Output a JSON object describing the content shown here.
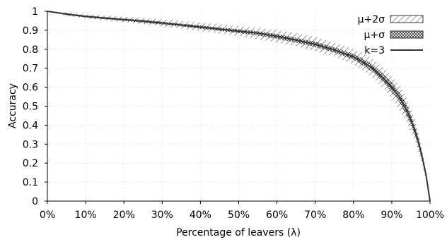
{
  "chart_data": {
    "type": "line",
    "xlabel": "Percentage of leavers (λ)",
    "ylabel": "Accuracy",
    "xlim": [
      0,
      100
    ],
    "ylim": [
      0,
      1
    ],
    "x_ticks": [
      "0%",
      "10%",
      "20%",
      "30%",
      "40%",
      "50%",
      "60%",
      "70%",
      "80%",
      "90%",
      "100%"
    ],
    "y_ticks": [
      "0",
      "0.1",
      "0.2",
      "0.3",
      "0.4",
      "0.5",
      "0.6",
      "0.7",
      "0.8",
      "0.9",
      "1"
    ],
    "grid": true,
    "legend_position": "top-right",
    "x": [
      0,
      5,
      10,
      15,
      20,
      25,
      30,
      35,
      40,
      45,
      50,
      55,
      60,
      65,
      70,
      75,
      80,
      82,
      85,
      88,
      90,
      92,
      94,
      95,
      96,
      97,
      98,
      99,
      100
    ],
    "series": [
      {
        "name": "μ+2σ",
        "kind": "band",
        "pattern": "hatch",
        "upper": [
          1.0,
          0.995,
          0.985,
          0.978,
          0.972,
          0.965,
          0.958,
          0.95,
          0.94,
          0.932,
          0.922,
          0.915,
          0.9,
          0.885,
          0.865,
          0.835,
          0.8,
          0.785,
          0.75,
          0.7,
          0.66,
          0.61,
          0.54,
          0.49,
          0.43,
          0.36,
          0.27,
          0.16,
          0.0
        ],
        "lower": [
          1.0,
          0.975,
          0.962,
          0.952,
          0.942,
          0.932,
          0.92,
          0.908,
          0.895,
          0.882,
          0.868,
          0.852,
          0.835,
          0.815,
          0.79,
          0.76,
          0.72,
          0.695,
          0.65,
          0.59,
          0.54,
          0.48,
          0.41,
          0.37,
          0.32,
          0.26,
          0.19,
          0.1,
          0.0
        ]
      },
      {
        "name": "μ+σ",
        "kind": "band",
        "pattern": "crosshatch",
        "upper": [
          1.0,
          0.99,
          0.978,
          0.97,
          0.962,
          0.955,
          0.945,
          0.935,
          0.925,
          0.915,
          0.905,
          0.895,
          0.88,
          0.86,
          0.84,
          0.81,
          0.775,
          0.755,
          0.72,
          0.665,
          0.625,
          0.575,
          0.505,
          0.455,
          0.4,
          0.33,
          0.245,
          0.145,
          0.0
        ],
        "lower": [
          1.0,
          0.98,
          0.968,
          0.958,
          0.95,
          0.94,
          0.93,
          0.92,
          0.908,
          0.897,
          0.885,
          0.872,
          0.855,
          0.835,
          0.812,
          0.782,
          0.745,
          0.72,
          0.68,
          0.62,
          0.575,
          0.52,
          0.445,
          0.4,
          0.35,
          0.285,
          0.21,
          0.12,
          0.0
        ]
      },
      {
        "name": "k=3",
        "kind": "line",
        "color": "#333333",
        "values": [
          1.0,
          0.985,
          0.973,
          0.964,
          0.956,
          0.948,
          0.938,
          0.928,
          0.917,
          0.906,
          0.895,
          0.885,
          0.868,
          0.848,
          0.826,
          0.796,
          0.76,
          0.738,
          0.7,
          0.643,
          0.6,
          0.548,
          0.475,
          0.428,
          0.375,
          0.31,
          0.228,
          0.133,
          0.0
        ]
      }
    ]
  }
}
